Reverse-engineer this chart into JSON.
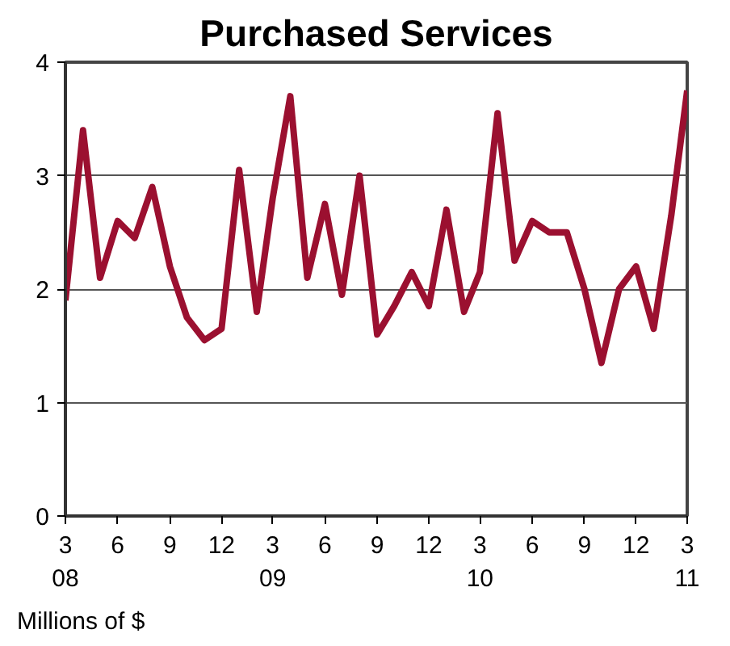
{
  "chart_data": {
    "type": "line",
    "title": "Purchased Services",
    "annotations": [
      "Millions of $"
    ],
    "x": [
      "2008-03",
      "2008-04",
      "2008-05",
      "2008-06",
      "2008-07",
      "2008-08",
      "2008-09",
      "2008-10",
      "2008-11",
      "2008-12",
      "2009-01",
      "2009-02",
      "2009-03",
      "2009-04",
      "2009-05",
      "2009-06",
      "2009-07",
      "2009-08",
      "2009-09",
      "2009-10",
      "2009-11",
      "2009-12",
      "2010-01",
      "2010-02",
      "2010-03",
      "2010-04",
      "2010-05",
      "2010-06",
      "2010-07",
      "2010-08",
      "2010-09",
      "2010-10",
      "2010-11",
      "2010-12",
      "2011-01",
      "2011-02",
      "2011-03"
    ],
    "series": [
      {
        "color": "#9b1030",
        "values": [
          1.9,
          3.4,
          2.1,
          2.6,
          2.45,
          2.9,
          2.2,
          1.75,
          1.55,
          1.65,
          3.05,
          1.8,
          2.8,
          3.7,
          2.1,
          2.75,
          1.95,
          3.0,
          1.6,
          1.85,
          2.15,
          1.85,
          2.7,
          1.8,
          2.15,
          3.55,
          2.25,
          2.6,
          2.5,
          2.5,
          2.0,
          1.35,
          2.0,
          2.2,
          1.65,
          2.65,
          3.75
        ]
      }
    ],
    "xlim": [
      "2008-03",
      "2011-03"
    ],
    "xticks": [
      {
        "value": "2008-03",
        "label": "3\n08"
      },
      {
        "value": "2008-06",
        "label": "6"
      },
      {
        "value": "2008-09",
        "label": "9"
      },
      {
        "value": "2008-12",
        "label": "12"
      },
      {
        "value": "2009-03",
        "label": "3\n09"
      },
      {
        "value": "2009-06",
        "label": "6"
      },
      {
        "value": "2009-09",
        "label": "9"
      },
      {
        "value": "2009-12",
        "label": "12"
      },
      {
        "value": "2010-03",
        "label": "3\n10"
      },
      {
        "value": "2010-06",
        "label": "6"
      },
      {
        "value": "2010-09",
        "label": "9"
      },
      {
        "value": "2010-12",
        "label": "12"
      },
      {
        "value": "2011-03",
        "label": "3\n11"
      }
    ],
    "ylim": [
      0,
      4
    ],
    "yticks": [
      0,
      1,
      2,
      3,
      4
    ],
    "grid": "y",
    "marker": "none",
    "line_style": "solid"
  }
}
